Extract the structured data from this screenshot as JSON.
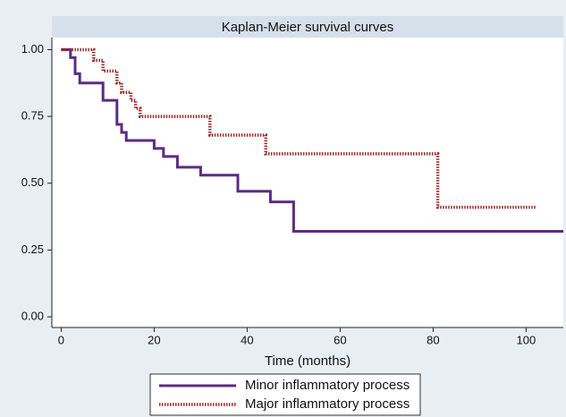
{
  "chart_data": {
    "type": "step",
    "title": "Kaplan-Meier survival curves",
    "xlabel": "Time (months)",
    "xlim": [
      -2,
      108
    ],
    "ylim": [
      -0.04,
      1.045
    ],
    "xticks": [
      0,
      20,
      40,
      60,
      80,
      100
    ],
    "yticks": [
      {
        "value": 0,
        "label": "0.00"
      },
      {
        "value": 0.25,
        "label": "0.25"
      },
      {
        "value": 0.5,
        "label": "0.50"
      },
      {
        "value": 0.75,
        "label": "0.75"
      },
      {
        "value": 1,
        "label": "1.00"
      }
    ],
    "series": [
      {
        "name": "Minor inflammatory process",
        "color": "#5b2c83",
        "dash": false,
        "x": [
          0,
          2,
          3,
          4,
          9,
          12,
          13,
          14,
          20,
          22,
          25,
          30,
          38,
          45,
          50,
          108
        ],
        "values": [
          1.0,
          0.97,
          0.91,
          0.875,
          0.81,
          0.72,
          0.69,
          0.66,
          0.63,
          0.6,
          0.56,
          0.53,
          0.47,
          0.43,
          0.32,
          0.32
        ]
      },
      {
        "name": "Major inflammatory process",
        "color": "#9b2a2a",
        "dash": true,
        "x": [
          0,
          7,
          9,
          12,
          13,
          15,
          16,
          17,
          32,
          44,
          81,
          102
        ],
        "values": [
          1.0,
          0.96,
          0.92,
          0.875,
          0.84,
          0.81,
          0.78,
          0.75,
          0.68,
          0.61,
          0.41,
          0.41
        ]
      }
    ]
  }
}
